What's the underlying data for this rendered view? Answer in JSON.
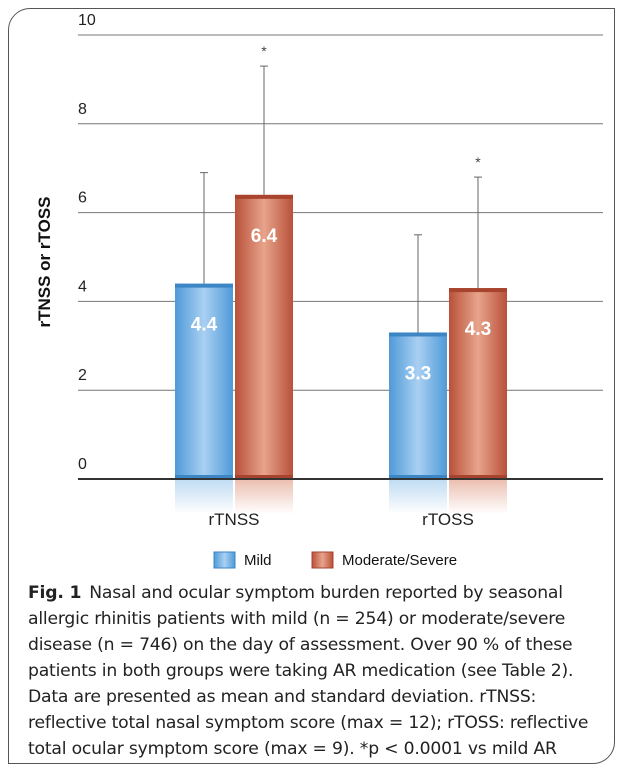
{
  "chart_data": {
    "type": "bar",
    "categories": [
      "rTNSS",
      "rTOSS"
    ],
    "series": [
      {
        "name": "Mild",
        "values": [
          4.4,
          3.3
        ],
        "sd": [
          2.5,
          2.2
        ],
        "labels": [
          "4.4",
          "3.3"
        ],
        "color": "#6aaee6"
      },
      {
        "name": "Moderate/Severe",
        "values": [
          6.4,
          4.3
        ],
        "sd": [
          2.9,
          2.5
        ],
        "labels": [
          "6.4",
          "4.3"
        ],
        "color": "#c8644a"
      }
    ],
    "significance": [
      {
        "series": 1,
        "category": 0,
        "marker": "*"
      },
      {
        "series": 1,
        "category": 1,
        "marker": "*"
      }
    ],
    "ylabel": "rTNSS or rTOSS",
    "ylim": [
      0,
      10
    ],
    "yticks": [
      "0",
      "2",
      "4",
      "6",
      "8",
      "10"
    ],
    "grid": true,
    "legend_position": "bottom"
  },
  "caption": {
    "figure_label": "Fig. 1",
    "text": "Nasal and ocular symptom burden reported by seasonal allergic rhinitis patients with mild (n = 254) or moderate/severe disease (n = 746) on the day of assessment. Over 90 % of these patients in both groups were taking AR medication (see Table 2). Data are presented as mean and standard deviation. rTNSS: reflective total nasal symptom score (max = 12); rTOSS: reflective total ocular symptom score (max = 9). *p < 0.0001 vs mild AR"
  }
}
